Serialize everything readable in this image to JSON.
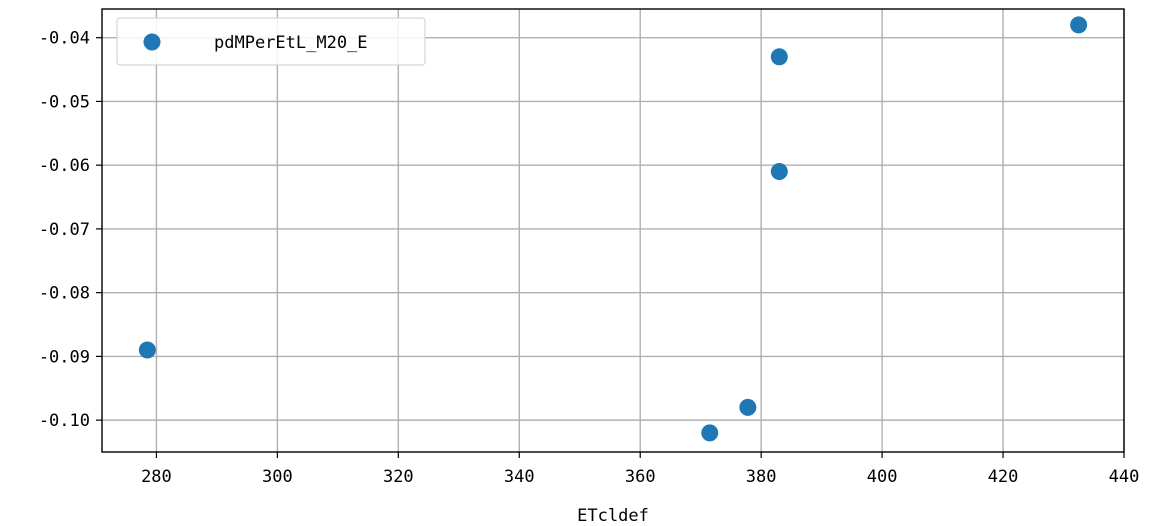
{
  "chart_data": {
    "type": "scatter",
    "xlabel": "ETcldef",
    "ylabel": "",
    "xlim": [
      271,
      440
    ],
    "ylim": [
      -0.105,
      -0.0355
    ],
    "xticks": [
      280,
      300,
      320,
      340,
      360,
      380,
      400,
      420,
      440
    ],
    "yticks": [
      -0.1,
      -0.09,
      -0.08,
      -0.07,
      -0.06,
      -0.05,
      -0.04
    ],
    "xtick_labels": [
      "280",
      "300",
      "320",
      "340",
      "360",
      "380",
      "400",
      "420",
      "440"
    ],
    "ytick_labels": [
      "-0.10",
      "-0.09",
      "-0.08",
      "-0.07",
      "-0.06",
      "-0.05",
      "-0.04"
    ],
    "grid": true,
    "legend_position": "top-left",
    "series": [
      {
        "name": "pdMPerEtL_M20_E",
        "color": "#1f77b4",
        "marker": "circle",
        "points": [
          {
            "x": 278.5,
            "y": -0.089
          },
          {
            "x": 371.5,
            "y": -0.102
          },
          {
            "x": 377.8,
            "y": -0.098
          },
          {
            "x": 383.0,
            "y": -0.043
          },
          {
            "x": 383.0,
            "y": -0.061
          },
          {
            "x": 432.5,
            "y": -0.038
          }
        ]
      }
    ]
  }
}
